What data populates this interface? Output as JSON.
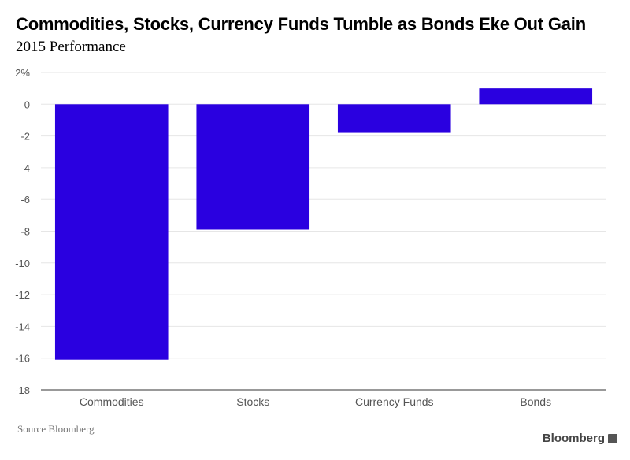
{
  "title": "Commodities, Stocks, Currency Funds Tumble as Bonds Eke Out Gain",
  "subtitle": "2015 Performance",
  "source": "Source Bloomberg",
  "brand": "Bloomberg",
  "colors": {
    "bar": "#2a00e0",
    "grid": "#e6e6e6",
    "axis": "#333333",
    "tick_text": "#555555"
  },
  "chart_data": {
    "type": "bar",
    "categories": [
      "Commodities",
      "Stocks",
      "Currency Funds",
      "Bonds"
    ],
    "values": [
      -16.1,
      -7.9,
      -1.8,
      1.0
    ],
    "ylim": [
      -18,
      2
    ],
    "yticks": [
      2,
      0,
      -2,
      -4,
      -6,
      -8,
      -10,
      -12,
      -14,
      -16,
      -18
    ],
    "ytick_labels": [
      "2%",
      "0",
      "-2",
      "-4",
      "-6",
      "-8",
      "-10",
      "-12",
      "-14",
      "-16",
      "-18"
    ],
    "grid": true
  }
}
